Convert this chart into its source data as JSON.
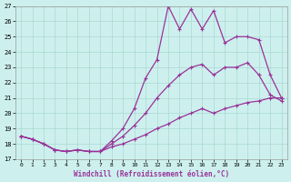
{
  "xlabel": "Windchill (Refroidissement éolien,°C)",
  "background_color": "#cdf0ee",
  "grid_color": "#aad8d0",
  "line_color": "#993399",
  "xlim": [
    -0.5,
    23.5
  ],
  "ylim": [
    17,
    27
  ],
  "xticks": [
    0,
    1,
    2,
    3,
    4,
    5,
    6,
    7,
    8,
    9,
    10,
    11,
    12,
    13,
    14,
    15,
    16,
    17,
    18,
    19,
    20,
    21,
    22,
    23
  ],
  "yticks": [
    17,
    18,
    19,
    20,
    21,
    22,
    23,
    24,
    25,
    26,
    27
  ],
  "line1_x": [
    0,
    1,
    2,
    3,
    4,
    5,
    6,
    7,
    8,
    9,
    10,
    11,
    12,
    13,
    14,
    15,
    16,
    17,
    18,
    19,
    20,
    21,
    22,
    23
  ],
  "line1_y": [
    18.5,
    18.3,
    18.0,
    17.6,
    17.5,
    17.6,
    17.5,
    17.5,
    18.2,
    19.0,
    20.3,
    22.3,
    23.5,
    27.0,
    25.5,
    26.8,
    25.5,
    26.7,
    24.6,
    25.0,
    25.0,
    24.8,
    22.5,
    21.0
  ],
  "line2_x": [
    0,
    1,
    2,
    3,
    4,
    5,
    6,
    7,
    8,
    9,
    10,
    11,
    12,
    13,
    14,
    15,
    16,
    17,
    18,
    19,
    20,
    21,
    22,
    23
  ],
  "line2_y": [
    18.5,
    18.3,
    18.0,
    17.6,
    17.5,
    17.6,
    17.5,
    17.5,
    18.0,
    18.5,
    19.2,
    20.0,
    21.0,
    21.8,
    22.5,
    23.0,
    23.2,
    22.5,
    23.0,
    23.0,
    23.3,
    22.5,
    21.2,
    20.8
  ],
  "line3_x": [
    0,
    1,
    2,
    3,
    4,
    5,
    6,
    7,
    8,
    9,
    10,
    11,
    12,
    13,
    14,
    15,
    16,
    17,
    18,
    19,
    20,
    21,
    22,
    23
  ],
  "line3_y": [
    18.5,
    18.3,
    18.0,
    17.6,
    17.5,
    17.6,
    17.5,
    17.5,
    17.8,
    18.0,
    18.3,
    18.6,
    19.0,
    19.3,
    19.7,
    20.0,
    20.3,
    20.0,
    20.3,
    20.5,
    20.7,
    20.8,
    21.0,
    21.0
  ]
}
